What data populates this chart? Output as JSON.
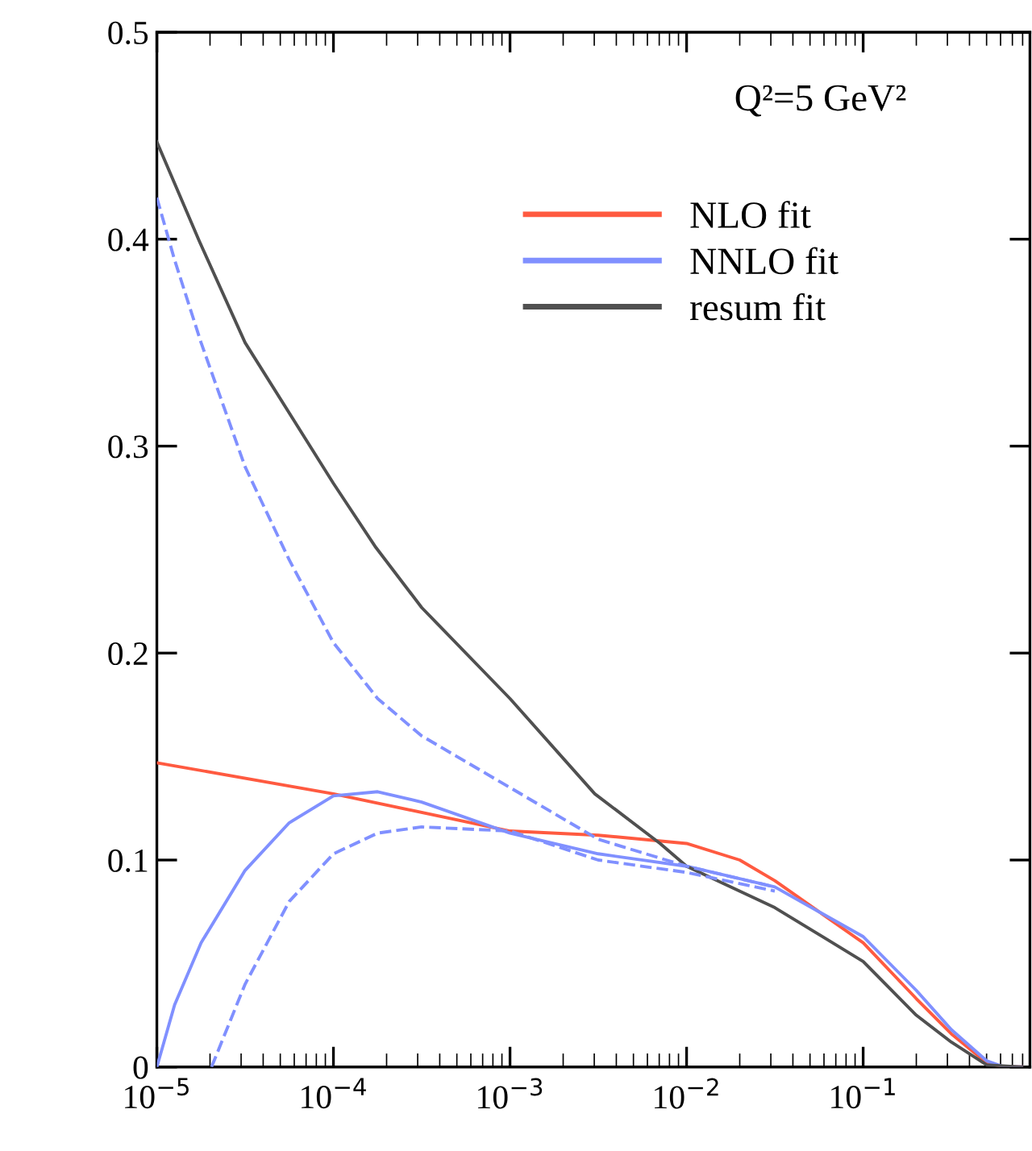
{
  "chart_data": {
    "type": "line",
    "annotations": [
      "Q²=5 GeV²"
    ],
    "xlim": [
      1e-05,
      0.88
    ],
    "log": "x",
    "xticks": [
      {
        "value": 1e-05,
        "label": "10$^{−5}$"
      },
      {
        "value": 0.0001,
        "label": "10$^{−4}$"
      },
      {
        "value": 0.001,
        "label": "10$^{−3}$"
      },
      {
        "value": 0.01,
        "label": "10$^{−2}$"
      },
      {
        "value": 0.1,
        "label": "10$^{−1}$"
      }
    ],
    "ylim": [
      0,
      0.5
    ],
    "yticks": [
      0,
      0.1,
      0.2,
      0.3,
      0.4,
      0.5
    ],
    "grid": false,
    "legend": "top right",
    "line_style": "solid",
    "marker": "none",
    "series": [
      {
        "name": "NLO fit",
        "color": "#ff5a40",
        "x": [
          1e-05,
          0.0001,
          0.001,
          0.00316,
          0.01,
          0.02,
          0.0316,
          0.1,
          0.2,
          0.316,
          0.5,
          0.63,
          0.79
        ],
        "values": [
          0.147,
          0.132,
          0.114,
          0.112,
          0.108,
          0.1,
          0.09,
          0.06,
          0.033,
          0.016,
          0.002,
          0,
          0
        ]
      },
      {
        "name": "NNLO fit",
        "color": "#8090ff",
        "x": [
          1e-05,
          1.26e-05,
          1.78e-05,
          3.16e-05,
          5.62e-05,
          0.0001,
          0.000178,
          0.000316,
          0.001,
          0.00316,
          0.01,
          0.0316,
          0.1,
          0.2,
          0.316,
          0.5,
          0.63,
          0.79
        ],
        "values": [
          0,
          0.03,
          0.06,
          0.095,
          0.118,
          0.131,
          0.133,
          0.128,
          0.113,
          0.103,
          0.097,
          0.087,
          0.063,
          0.037,
          0.018,
          0.003,
          0,
          0
        ]
      },
      {
        "name": "resum fit",
        "color": "#505050",
        "x": [
          1e-05,
          1.74e-05,
          3.16e-05,
          0.0001,
          0.000174,
          0.000316,
          0.001,
          0.00302,
          0.00708,
          0.01,
          0.0316,
          0.1,
          0.2,
          0.316,
          0.5,
          0.79
        ],
        "values": [
          0.447,
          0.399,
          0.35,
          0.282,
          0.251,
          0.222,
          0.178,
          0.132,
          0.108,
          0.097,
          0.077,
          0.051,
          0.025,
          0.012,
          0.001,
          0
        ]
      },
      {
        "color": "#8090ff",
        "line_style": "dashed",
        "x": [
          2.04e-05,
          3.16e-05,
          5.62e-05,
          0.0001,
          0.000178,
          0.000316,
          0.001,
          0.00316,
          0.01,
          0.0316
        ],
        "values": [
          0,
          0.04,
          0.08,
          0.103,
          0.113,
          0.116,
          0.114,
          0.1,
          0.094,
          0.085
        ]
      },
      {
        "color": "#8090ff",
        "line_style": "dashed",
        "x": [
          1e-05,
          1.26e-05,
          1.78e-05,
          3.16e-05,
          5.62e-05,
          0.0001,
          0.000178,
          0.000316,
          0.001,
          0.00316,
          0.01,
          0.0316
        ],
        "values": [
          0.42,
          0.39,
          0.35,
          0.29,
          0.245,
          0.205,
          0.178,
          0.16,
          0.135,
          0.11,
          0.097,
          0.087
        ]
      }
    ]
  }
}
